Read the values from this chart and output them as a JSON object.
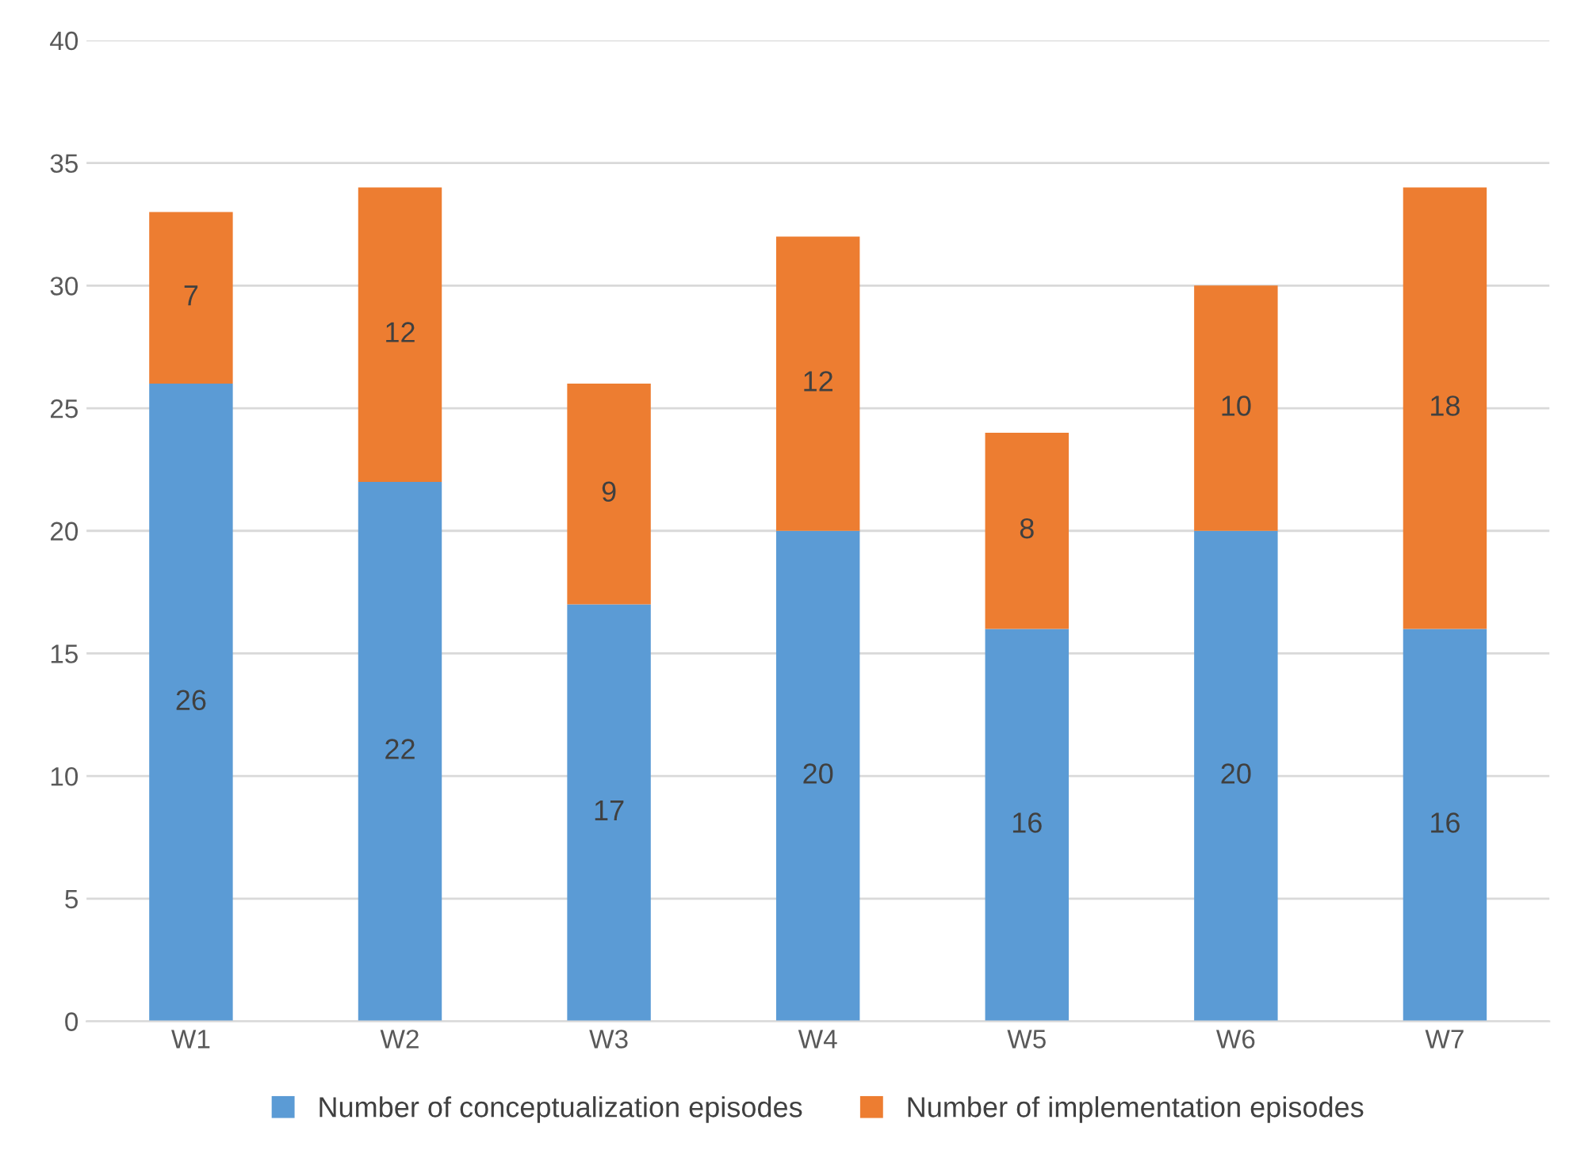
{
  "chart_data": {
    "type": "bar",
    "stacked": true,
    "categories": [
      "W1",
      "W2",
      "W3",
      "W4",
      "W5",
      "W6",
      "W7"
    ],
    "series": [
      {
        "name": "Number of conceptualization episodes",
        "color": "#5b9bd5",
        "values": [
          26,
          22,
          17,
          20,
          16,
          20,
          16
        ]
      },
      {
        "name": "Number of implementation episodes",
        "color": "#ed7d31",
        "values": [
          7,
          12,
          9,
          12,
          8,
          10,
          18
        ]
      }
    ],
    "ylim": [
      0,
      40
    ],
    "yticks": [
      0,
      5,
      10,
      15,
      20,
      25,
      30,
      35,
      40
    ],
    "grid": "y",
    "legend": "bottom",
    "data_labels": true
  }
}
